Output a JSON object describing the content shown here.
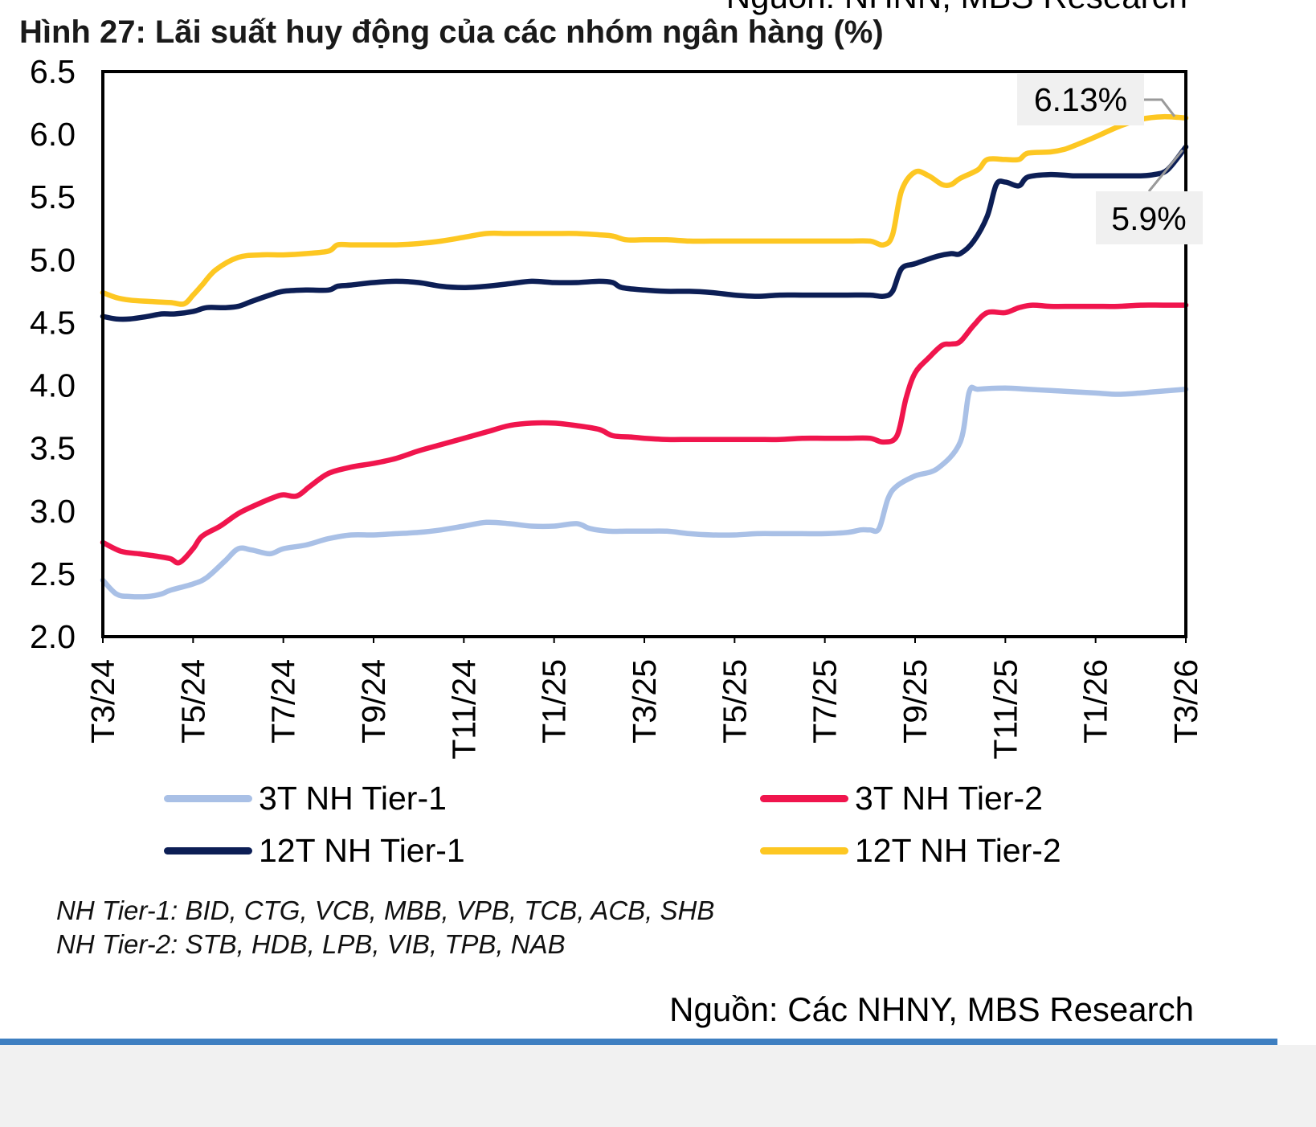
{
  "header": {
    "top_source": "Nguồn: NHNN, MBS Research",
    "figure_title": "Hình 27: Lãi suất huy động của các nhóm ngân hàng (%)"
  },
  "chart_data": {
    "type": "line",
    "title": "Hình 27: Lãi suất huy động của các nhóm ngân hàng (%)",
    "xlabel": "",
    "ylabel": "",
    "ylim": [
      2.0,
      6.5
    ],
    "yticks": [
      "2.0",
      "2.5",
      "3.0",
      "3.5",
      "4.0",
      "4.5",
      "5.0",
      "5.5",
      "6.0",
      "6.5"
    ],
    "x_tick_labels": [
      "T3/24",
      "T5/24",
      "T7/24",
      "T9/24",
      "T11/24",
      "T1/25",
      "T3/25",
      "T5/25",
      "T7/25",
      "T9/25",
      "T11/25",
      "T1/26",
      "T3/26"
    ],
    "x_range": [
      0,
      24
    ],
    "grid": false,
    "legend_position": "bottom",
    "series": [
      {
        "name": "3T NH Tier-1",
        "color": "#a9c0e6",
        "points": [
          [
            0,
            2.45
          ],
          [
            0.3,
            2.34
          ],
          [
            0.6,
            2.32
          ],
          [
            1.0,
            2.32
          ],
          [
            1.3,
            2.34
          ],
          [
            1.5,
            2.37
          ],
          [
            2.0,
            2.42
          ],
          [
            2.3,
            2.47
          ],
          [
            2.7,
            2.6
          ],
          [
            3.0,
            2.7
          ],
          [
            3.3,
            2.69
          ],
          [
            3.7,
            2.66
          ],
          [
            4.0,
            2.7
          ],
          [
            4.5,
            2.73
          ],
          [
            5.0,
            2.78
          ],
          [
            5.5,
            2.81
          ],
          [
            6.0,
            2.81
          ],
          [
            6.5,
            2.82
          ],
          [
            7.0,
            2.83
          ],
          [
            7.5,
            2.85
          ],
          [
            8.0,
            2.88
          ],
          [
            8.5,
            2.91
          ],
          [
            9.0,
            2.9
          ],
          [
            9.5,
            2.88
          ],
          [
            10.0,
            2.88
          ],
          [
            10.5,
            2.9
          ],
          [
            10.8,
            2.86
          ],
          [
            11.2,
            2.84
          ],
          [
            11.6,
            2.84
          ],
          [
            12.0,
            2.84
          ],
          [
            12.5,
            2.84
          ],
          [
            13.0,
            2.82
          ],
          [
            13.5,
            2.81
          ],
          [
            14.0,
            2.81
          ],
          [
            14.5,
            2.82
          ],
          [
            15.0,
            2.82
          ],
          [
            15.5,
            2.82
          ],
          [
            16.0,
            2.82
          ],
          [
            16.5,
            2.83
          ],
          [
            16.8,
            2.85
          ],
          [
            17.0,
            2.85
          ],
          [
            17.2,
            2.86
          ],
          [
            17.4,
            3.1
          ],
          [
            17.6,
            3.2
          ],
          [
            18.0,
            3.28
          ],
          [
            18.5,
            3.34
          ],
          [
            19.0,
            3.55
          ],
          [
            19.2,
            3.95
          ],
          [
            19.4,
            3.97
          ],
          [
            20.0,
            3.98
          ],
          [
            20.5,
            3.97
          ],
          [
            21.0,
            3.96
          ],
          [
            21.5,
            3.95
          ],
          [
            22.0,
            3.94
          ],
          [
            22.5,
            3.93
          ],
          [
            23.0,
            3.94
          ],
          [
            23.3,
            3.95
          ],
          [
            24.0,
            3.97
          ]
        ]
      },
      {
        "name": "3T NH Tier-2",
        "color": "#f0154d",
        "points": [
          [
            0,
            2.75
          ],
          [
            0.4,
            2.68
          ],
          [
            0.8,
            2.66
          ],
          [
            1.2,
            2.64
          ],
          [
            1.5,
            2.62
          ],
          [
            1.7,
            2.59
          ],
          [
            2.0,
            2.7
          ],
          [
            2.2,
            2.8
          ],
          [
            2.6,
            2.88
          ],
          [
            3.0,
            2.98
          ],
          [
            3.4,
            3.05
          ],
          [
            3.8,
            3.11
          ],
          [
            4.0,
            3.13
          ],
          [
            4.3,
            3.12
          ],
          [
            4.6,
            3.2
          ],
          [
            5.0,
            3.3
          ],
          [
            5.5,
            3.35
          ],
          [
            6.0,
            3.38
          ],
          [
            6.5,
            3.42
          ],
          [
            7.0,
            3.48
          ],
          [
            7.5,
            3.53
          ],
          [
            8.0,
            3.58
          ],
          [
            8.5,
            3.63
          ],
          [
            9.0,
            3.68
          ],
          [
            9.5,
            3.7
          ],
          [
            10.0,
            3.7
          ],
          [
            10.5,
            3.68
          ],
          [
            11.0,
            3.65
          ],
          [
            11.3,
            3.6
          ],
          [
            11.7,
            3.59
          ],
          [
            12.0,
            3.58
          ],
          [
            12.5,
            3.57
          ],
          [
            13.0,
            3.57
          ],
          [
            13.5,
            3.57
          ],
          [
            14.0,
            3.57
          ],
          [
            14.5,
            3.57
          ],
          [
            15.0,
            3.57
          ],
          [
            15.5,
            3.58
          ],
          [
            16.0,
            3.58
          ],
          [
            16.5,
            3.58
          ],
          [
            17.0,
            3.58
          ],
          [
            17.3,
            3.55
          ],
          [
            17.6,
            3.6
          ],
          [
            17.8,
            3.9
          ],
          [
            18.0,
            4.1
          ],
          [
            18.3,
            4.22
          ],
          [
            18.6,
            4.32
          ],
          [
            18.8,
            4.33
          ],
          [
            19.0,
            4.35
          ],
          [
            19.3,
            4.48
          ],
          [
            19.6,
            4.58
          ],
          [
            20.0,
            4.58
          ],
          [
            20.3,
            4.62
          ],
          [
            20.6,
            4.64
          ],
          [
            21.0,
            4.63
          ],
          [
            21.5,
            4.63
          ],
          [
            22.0,
            4.63
          ],
          [
            22.5,
            4.63
          ],
          [
            23.0,
            4.64
          ],
          [
            23.5,
            4.64
          ],
          [
            24.0,
            4.64
          ]
        ]
      },
      {
        "name": "12T NH Tier-1",
        "color": "#0c1e55",
        "points": [
          [
            0,
            4.55
          ],
          [
            0.3,
            4.53
          ],
          [
            0.6,
            4.53
          ],
          [
            1.0,
            4.55
          ],
          [
            1.3,
            4.57
          ],
          [
            1.6,
            4.57
          ],
          [
            2.0,
            4.59
          ],
          [
            2.3,
            4.62
          ],
          [
            2.7,
            4.62
          ],
          [
            3.0,
            4.63
          ],
          [
            3.3,
            4.67
          ],
          [
            3.7,
            4.72
          ],
          [
            4.0,
            4.75
          ],
          [
            4.5,
            4.76
          ],
          [
            5.0,
            4.76
          ],
          [
            5.2,
            4.79
          ],
          [
            5.5,
            4.8
          ],
          [
            6.0,
            4.82
          ],
          [
            6.5,
            4.83
          ],
          [
            7.0,
            4.82
          ],
          [
            7.5,
            4.79
          ],
          [
            8.0,
            4.78
          ],
          [
            8.5,
            4.79
          ],
          [
            9.0,
            4.81
          ],
          [
            9.5,
            4.83
          ],
          [
            10.0,
            4.82
          ],
          [
            10.5,
            4.82
          ],
          [
            11.0,
            4.83
          ],
          [
            11.3,
            4.82
          ],
          [
            11.5,
            4.78
          ],
          [
            12.0,
            4.76
          ],
          [
            12.5,
            4.75
          ],
          [
            13.0,
            4.75
          ],
          [
            13.5,
            4.74
          ],
          [
            14.0,
            4.72
          ],
          [
            14.5,
            4.71
          ],
          [
            15.0,
            4.72
          ],
          [
            15.5,
            4.72
          ],
          [
            16.0,
            4.72
          ],
          [
            16.5,
            4.72
          ],
          [
            17.0,
            4.72
          ],
          [
            17.3,
            4.71
          ],
          [
            17.5,
            4.75
          ],
          [
            17.7,
            4.93
          ],
          [
            18.0,
            4.97
          ],
          [
            18.5,
            5.03
          ],
          [
            18.8,
            5.05
          ],
          [
            19.0,
            5.05
          ],
          [
            19.3,
            5.15
          ],
          [
            19.6,
            5.35
          ],
          [
            19.8,
            5.6
          ],
          [
            20.0,
            5.62
          ],
          [
            20.3,
            5.59
          ],
          [
            20.5,
            5.66
          ],
          [
            21.0,
            5.68
          ],
          [
            21.5,
            5.67
          ],
          [
            22.0,
            5.67
          ],
          [
            22.5,
            5.67
          ],
          [
            23.0,
            5.67
          ],
          [
            23.3,
            5.68
          ],
          [
            23.6,
            5.72
          ],
          [
            24.0,
            5.9
          ]
        ]
      },
      {
        "name": "12T NH Tier-2",
        "color": "#fdc722",
        "points": [
          [
            0,
            4.74
          ],
          [
            0.3,
            4.7
          ],
          [
            0.6,
            4.68
          ],
          [
            1.0,
            4.67
          ],
          [
            1.5,
            4.66
          ],
          [
            1.8,
            4.65
          ],
          [
            2.0,
            4.72
          ],
          [
            2.2,
            4.8
          ],
          [
            2.5,
            4.92
          ],
          [
            3.0,
            5.02
          ],
          [
            3.5,
            5.04
          ],
          [
            4.0,
            5.04
          ],
          [
            4.5,
            5.05
          ],
          [
            5.0,
            5.07
          ],
          [
            5.2,
            5.12
          ],
          [
            5.5,
            5.12
          ],
          [
            6.0,
            5.12
          ],
          [
            6.5,
            5.12
          ],
          [
            7.0,
            5.13
          ],
          [
            7.5,
            5.15
          ],
          [
            8.0,
            5.18
          ],
          [
            8.5,
            5.21
          ],
          [
            9.0,
            5.21
          ],
          [
            9.5,
            5.21
          ],
          [
            10.0,
            5.21
          ],
          [
            10.5,
            5.21
          ],
          [
            11.0,
            5.2
          ],
          [
            11.3,
            5.19
          ],
          [
            11.6,
            5.16
          ],
          [
            12.0,
            5.16
          ],
          [
            12.5,
            5.16
          ],
          [
            13.0,
            5.15
          ],
          [
            13.5,
            5.15
          ],
          [
            14.0,
            5.15
          ],
          [
            14.5,
            5.15
          ],
          [
            15.0,
            5.15
          ],
          [
            15.5,
            5.15
          ],
          [
            16.0,
            5.15
          ],
          [
            16.5,
            5.15
          ],
          [
            17.0,
            5.15
          ],
          [
            17.3,
            5.12
          ],
          [
            17.5,
            5.2
          ],
          [
            17.7,
            5.55
          ],
          [
            18.0,
            5.7
          ],
          [
            18.3,
            5.67
          ],
          [
            18.6,
            5.6
          ],
          [
            18.8,
            5.6
          ],
          [
            19.0,
            5.65
          ],
          [
            19.4,
            5.72
          ],
          [
            19.6,
            5.8
          ],
          [
            20.0,
            5.8
          ],
          [
            20.3,
            5.8
          ],
          [
            20.5,
            5.85
          ],
          [
            21.0,
            5.86
          ],
          [
            21.3,
            5.88
          ],
          [
            21.6,
            5.92
          ],
          [
            22.0,
            5.98
          ],
          [
            22.5,
            6.06
          ],
          [
            23.0,
            6.12
          ],
          [
            23.5,
            6.14
          ],
          [
            24.0,
            6.13
          ]
        ]
      }
    ],
    "annotations": [
      {
        "text": "6.13%",
        "series": "12T NH Tier-2",
        "x": 24,
        "y": 6.13
      },
      {
        "text": "5.9%",
        "series": "12T NH Tier-1",
        "x": 24,
        "y": 5.9
      }
    ]
  },
  "legend": {
    "items": [
      {
        "label": "3T NH Tier-1",
        "color": "#a9c0e6"
      },
      {
        "label": "3T NH Tier-2",
        "color": "#f0154d"
      },
      {
        "label": "12T NH Tier-1",
        "color": "#0c1e55"
      },
      {
        "label": "12T NH Tier-2",
        "color": "#fdc722"
      }
    ]
  },
  "notes": {
    "line1": "NH Tier-1: BID, CTG, VCB, MBB, VPB, TCB, ACB, SHB",
    "line2": "NH Tier-2: STB, HDB, LPB, VIB, TPB, NAB"
  },
  "footer": {
    "source": "Nguồn: Các NHNY, MBS Research",
    "accent_color": "#3e7fc1"
  }
}
